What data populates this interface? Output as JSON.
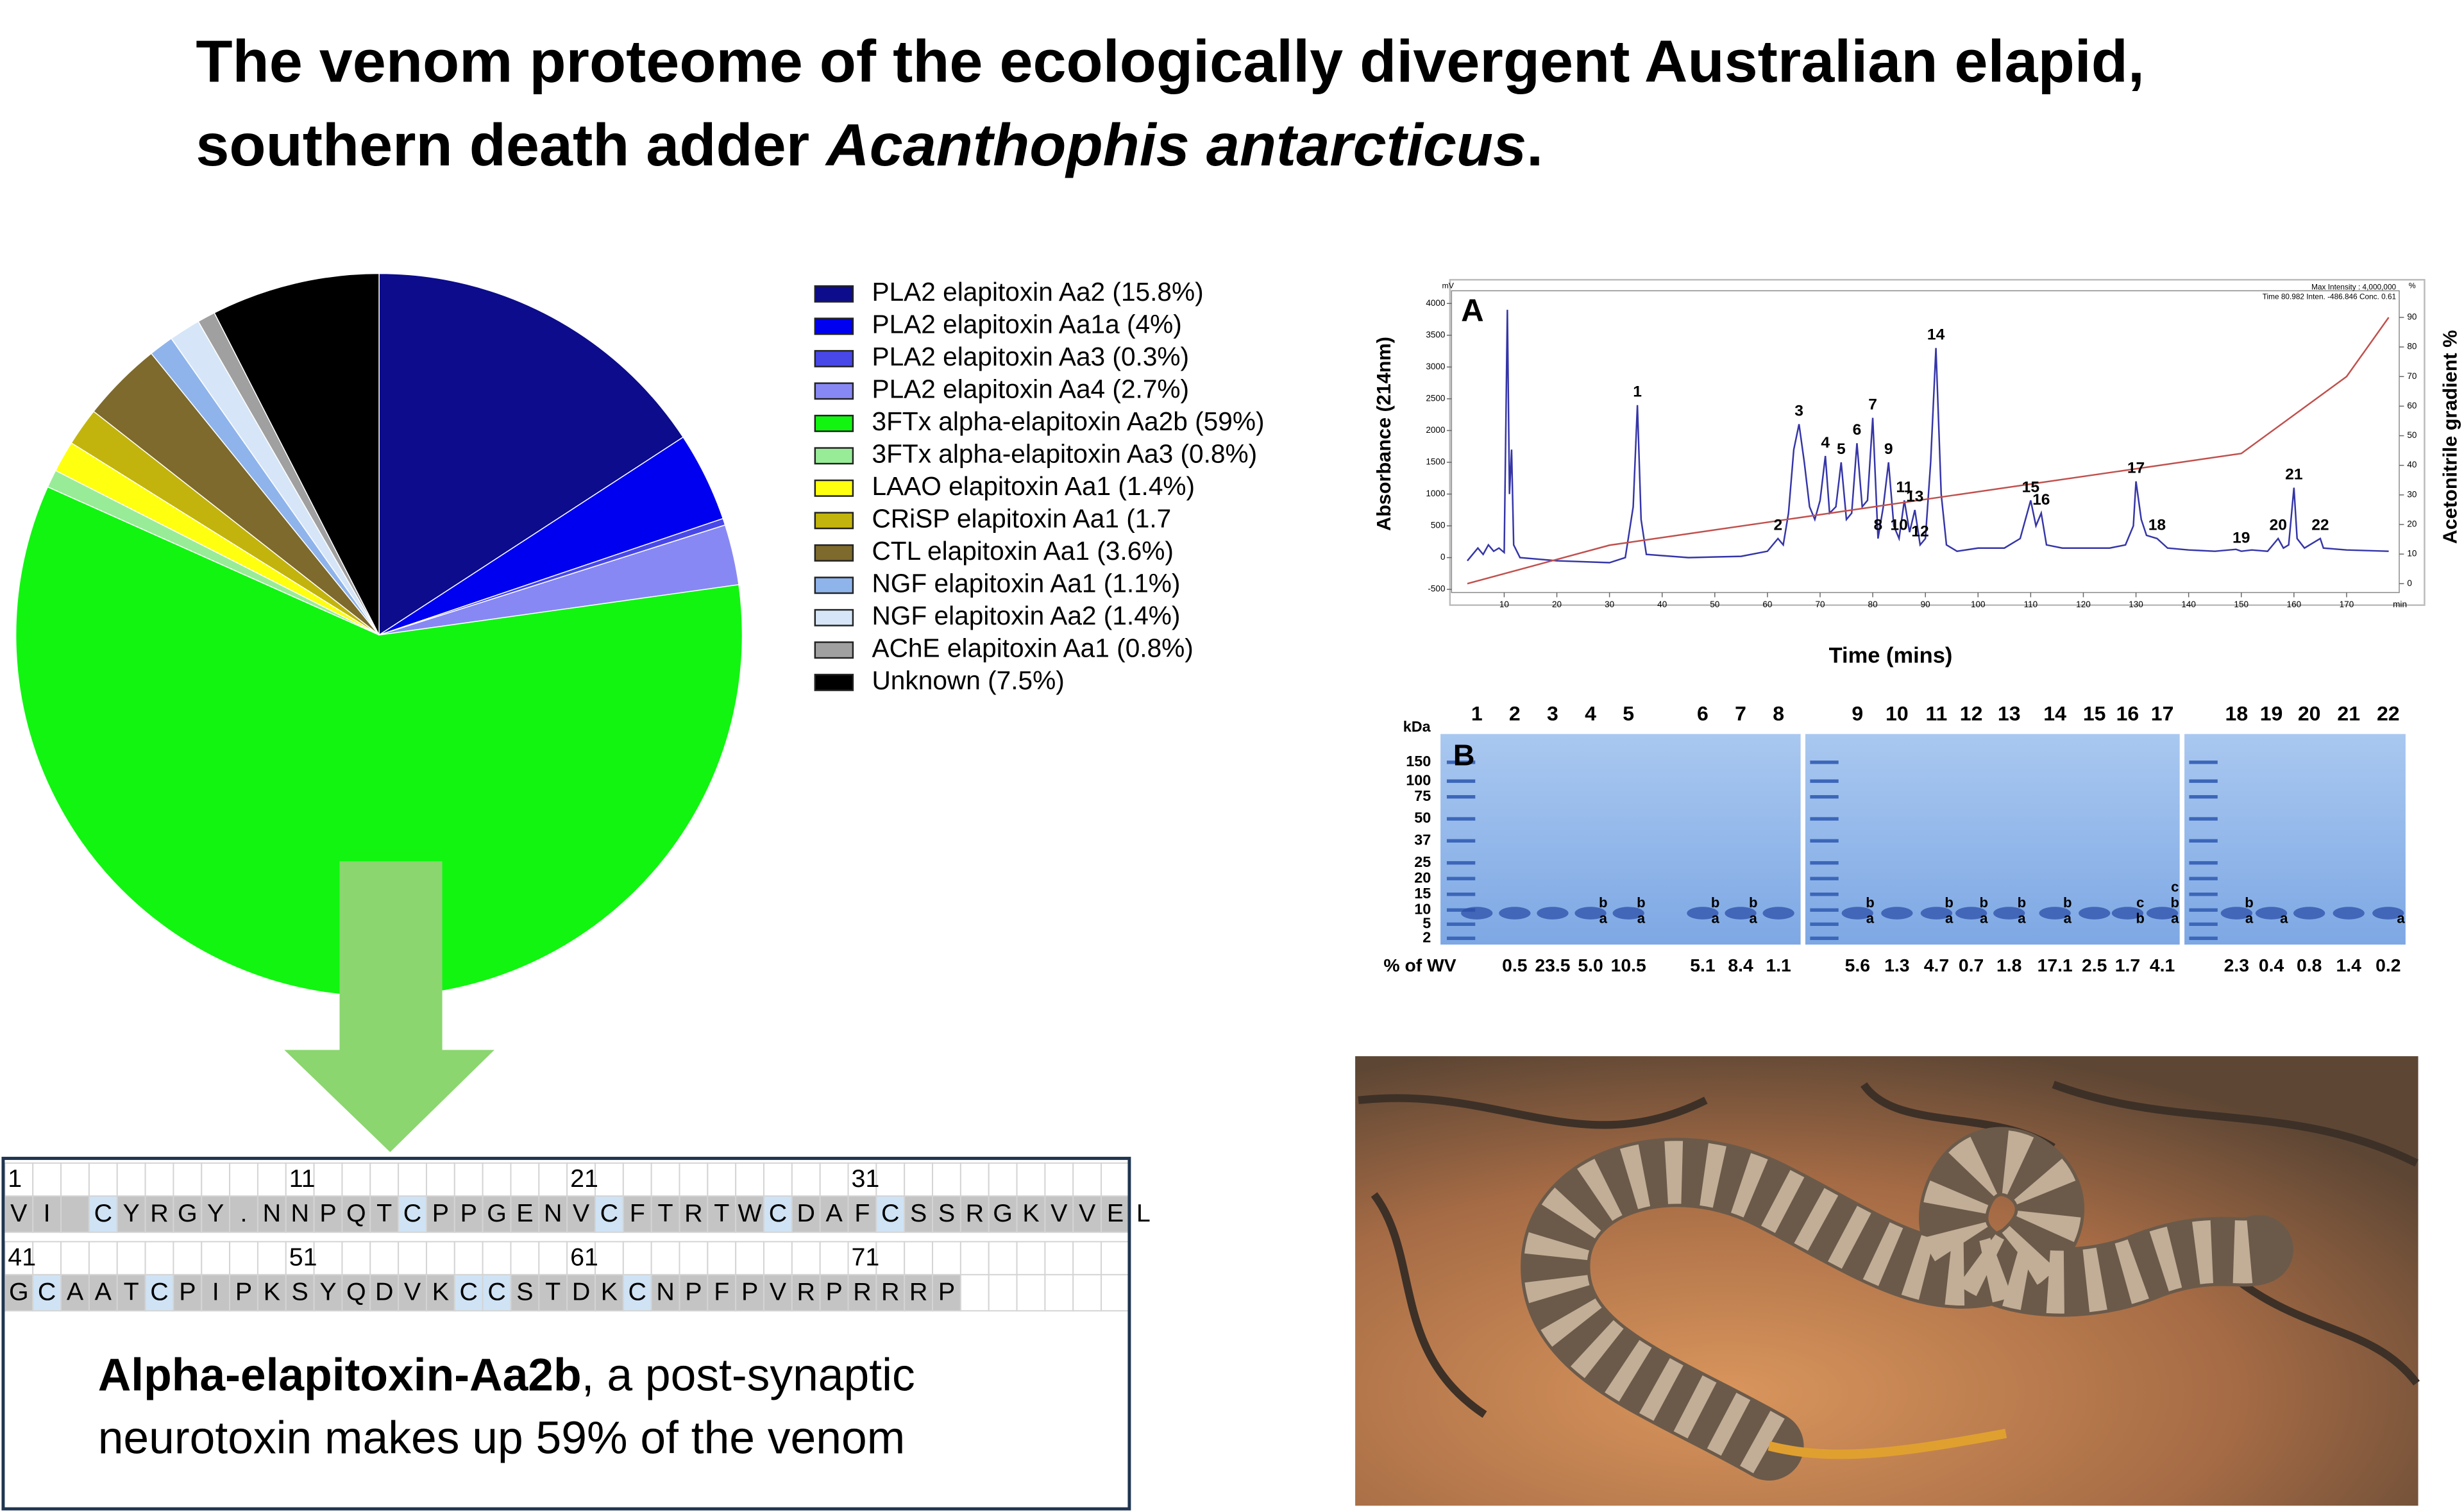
{
  "header": {
    "title_line1": "The venom proteome of the ecologically divergent Australian elapid,",
    "title_line2": "southern death adder ",
    "title_species": "Acanthophis antarcticus",
    "title_end": "."
  },
  "chart_data": {
    "type": "pie",
    "categories": [
      "PLA2 elapitoxin Aa2 (15.8%)",
      "PLA2 elapitoxin Aa1a (4%)",
      "PLA2 elapitoxin Aa3 (0.3%)",
      "PLA2 elapitoxin Aa4 (2.7%)",
      "3FTx alpha-elapitoxin Aa2b (59%)",
      "3FTx alpha-elapitoxin Aa3 (0.8%)",
      "LAAO elapitoxin Aa1 (1.4%)",
      "CRiSP elapitoxin Aa1 (1.7",
      "CTL elapitoxin Aa1 (3.6%)",
      "NGF elapitoxin Aa1 (1.1%)",
      "NGF elapitoxin Aa2 (1.4%)",
      "AChE elapitoxin Aa1 (0.8%)",
      "Unknown (7.5%)"
    ],
    "values": [
      15.8,
      4,
      0.3,
      2.7,
      59,
      0.8,
      1.4,
      1.7,
      3.6,
      1.1,
      1.4,
      0.8,
      7.5
    ],
    "colors": [
      "#0c0c8c",
      "#0000f0",
      "#4848e8",
      "#8888f4",
      "#11f511",
      "#98ec98",
      "#ffff10",
      "#c2b40c",
      "#7d6a2c",
      "#8fb4ec",
      "#d6e6f8",
      "#a0a0a0",
      "#000000"
    ]
  },
  "sequence": {
    "rows": [
      {
        "numbers": [
          1,
          11,
          21,
          31
        ],
        "residues": [
          "V",
          "I",
          "",
          "C",
          "Y",
          "R",
          "G",
          "Y",
          ".",
          "N",
          "N",
          "P",
          "Q",
          "T",
          "C",
          "P",
          "P",
          "G",
          "E",
          "N",
          "V",
          "C",
          "F",
          "T",
          "R",
          "T",
          "W",
          "C",
          "D",
          "A",
          "F",
          "C",
          "S",
          "S",
          "R",
          "G",
          "K",
          "V",
          "V",
          "E",
          "L"
        ]
      },
      {
        "numbers": [
          41,
          51,
          61,
          71
        ],
        "residues": [
          "G",
          "C",
          "A",
          "A",
          "T",
          "C",
          "P",
          "I",
          "P",
          "K",
          "S",
          "Y",
          "Q",
          "D",
          "V",
          "K",
          "C",
          "C",
          "S",
          "T",
          "D",
          "K",
          "C",
          "N",
          "P",
          "F",
          "P",
          "V",
          "R",
          "P",
          "R",
          "R",
          "R",
          "P"
        ]
      }
    ]
  },
  "caption": {
    "bold": "Alpha-elapitoxin-Aa2b",
    "line1_rest": ", a post-synaptic",
    "line2": "neurotoxin makes up 59% of the venom"
  },
  "chromatogram": {
    "panel_label": "A",
    "y_label": "Absorbance (214nm)",
    "y2_label": "Acetonitrile gradient %",
    "x_label": "Time (mins)",
    "y_unit": "mV",
    "y2_unit": "%",
    "x_unit": "min",
    "info": [
      "Max Intensity : 4,000,000",
      "Time 80.982   Inten. -486.846   Conc. 0.61"
    ],
    "xlim": [
      0,
      180
    ],
    "ylim": [
      -550,
      4200
    ],
    "y2lim": [
      -3,
      99
    ],
    "xticks": [
      10,
      20,
      30,
      40,
      50,
      60,
      70,
      80,
      90,
      100,
      110,
      120,
      130,
      140,
      150,
      160,
      170
    ],
    "yticks": [
      -500,
      0,
      500,
      1000,
      1500,
      2000,
      2500,
      3000,
      3500,
      4000
    ],
    "y2ticks": [
      0,
      10,
      20,
      30,
      40,
      50,
      60,
      70,
      80,
      90
    ],
    "series": [
      {
        "color": "#3535a8",
        "x": [
          3,
          5,
          6,
          7,
          8,
          9,
          10,
          10.6,
          11,
          11.4,
          11.8,
          13,
          20,
          30,
          33,
          34.5,
          35.3,
          36,
          37,
          45,
          55,
          60,
          62,
          63,
          64,
          65,
          66,
          67,
          68,
          69,
          70,
          71,
          71.8,
          73,
          74,
          75,
          76,
          77,
          78,
          79,
          80,
          81,
          82,
          83,
          84,
          85,
          86,
          87,
          88,
          89,
          90,
          91,
          92,
          93,
          94,
          96,
          100,
          105,
          108,
          110,
          111,
          112,
          113,
          116,
          125,
          128,
          129.5,
          130,
          131,
          132,
          134,
          136,
          140,
          145,
          149,
          150,
          152,
          155,
          157,
          158,
          159,
          160,
          160.6,
          162,
          165,
          165.6,
          170,
          178
        ],
        "values": [
          -50,
          150,
          50,
          200,
          100,
          150,
          80,
          3900,
          1000,
          1700,
          200,
          0,
          -50,
          -80,
          0,
          800,
          2400,
          600,
          50,
          0,
          20,
          100,
          300,
          200,
          700,
          1700,
          2100,
          1500,
          800,
          600,
          900,
          1600,
          700,
          800,
          1500,
          600,
          700,
          1800,
          800,
          900,
          2200,
          300,
          800,
          1500,
          500,
          300,
          900,
          400,
          750,
          200,
          300,
          1500,
          3300,
          1000,
          200,
          100,
          150,
          150,
          300,
          900,
          500,
          700,
          200,
          150,
          150,
          200,
          500,
          1200,
          600,
          350,
          300,
          150,
          120,
          100,
          130,
          100,
          120,
          100,
          300,
          150,
          200,
          1100,
          300,
          150,
          300,
          150,
          120,
          100
        ]
      },
      {
        "color": "#c0504d",
        "axis": "y2",
        "x": [
          3,
          30,
          150,
          170,
          178
        ],
        "values": [
          0,
          13,
          44,
          70,
          90
        ]
      }
    ],
    "peaks": [
      {
        "label": "1",
        "x": 35.3,
        "y": 2400
      },
      {
        "label": "2",
        "x": 62,
        "y": 300
      },
      {
        "label": "3",
        "x": 66,
        "y": 2100
      },
      {
        "label": "4",
        "x": 71,
        "y": 1600
      },
      {
        "label": "5",
        "x": 74,
        "y": 1500
      },
      {
        "label": "6",
        "x": 77,
        "y": 1800
      },
      {
        "label": "7",
        "x": 80,
        "y": 2200
      },
      {
        "label": "8",
        "x": 81,
        "y": 300
      },
      {
        "label": "9",
        "x": 83,
        "y": 1500
      },
      {
        "label": "10",
        "x": 85,
        "y": 300
      },
      {
        "label": "11",
        "x": 86,
        "y": 900
      },
      {
        "label": "12",
        "x": 89,
        "y": 200
      },
      {
        "label": "13",
        "x": 88,
        "y": 750
      },
      {
        "label": "14",
        "x": 92,
        "y": 3300
      },
      {
        "label": "15",
        "x": 110,
        "y": 900
      },
      {
        "label": "16",
        "x": 112,
        "y": 700
      },
      {
        "label": "17",
        "x": 130,
        "y": 1200
      },
      {
        "label": "18",
        "x": 134,
        "y": 300
      },
      {
        "label": "19",
        "x": 150,
        "y": 100
      },
      {
        "label": "20",
        "x": 157,
        "y": 300
      },
      {
        "label": "21",
        "x": 160,
        "y": 1100
      },
      {
        "label": "22",
        "x": 165,
        "y": 300
      }
    ]
  },
  "gel": {
    "panel_label": "B",
    "unit_label": "kDa",
    "markers": [
      150,
      100,
      75,
      50,
      37,
      25,
      20,
      15,
      10,
      5,
      2
    ],
    "wv_label": "% of WV",
    "lanes": [
      {
        "number": 1
      },
      {
        "number": 2,
        "wv": "0.5"
      },
      {
        "number": 3,
        "wv": "23.5"
      },
      {
        "number": 4,
        "wv": "5.0",
        "bands": [
          "b",
          "a"
        ]
      },
      {
        "number": 5,
        "wv": "10.5",
        "bands": [
          "b",
          "a"
        ]
      },
      {
        "number": 6,
        "wv": "5.1",
        "bands": [
          "b",
          "a"
        ]
      },
      {
        "number": 7,
        "wv": "8.4",
        "bands": [
          "b",
          "a"
        ]
      },
      {
        "number": 8,
        "wv": "1.1"
      },
      {
        "number": 9,
        "wv": "5.6",
        "bands": [
          "b",
          "a"
        ]
      },
      {
        "number": 10,
        "wv": "1.3"
      },
      {
        "number": 11,
        "wv": "4.7",
        "bands": [
          "b",
          "a"
        ]
      },
      {
        "number": 12,
        "wv": "0.7",
        "bands": [
          "b",
          {
            "text": "a",
            "color": "#e02020"
          }
        ]
      },
      {
        "number": 13,
        "wv": "1.8",
        "bands": [
          "b",
          {
            "text": "a",
            "color": "#e02020"
          }
        ]
      },
      {
        "number": 14,
        "wv": "17.1",
        "bands": [
          "b",
          "a"
        ]
      },
      {
        "number": 15,
        "wv": "2.5"
      },
      {
        "number": 16,
        "wv": "1.7",
        "bands": [
          {
            "text": "c",
            "color": "#e02020"
          },
          "b"
        ]
      },
      {
        "number": 17,
        "wv": "4.1",
        "bands": [
          {
            "text": "c",
            "color": "#e02020"
          },
          "b",
          "a"
        ]
      },
      {
        "number": 18,
        "wv": "2.3",
        "bands": [
          "b",
          "a"
        ]
      },
      {
        "number": 19,
        "wv": "0.4",
        "bands": [
          {
            "text": "a",
            "color": "#e02020"
          }
        ]
      },
      {
        "number": 20,
        "wv": "0.8"
      },
      {
        "number": 21,
        "wv": "1.4"
      },
      {
        "number": 22,
        "wv": "0.2",
        "bands": [
          {
            "text": "a",
            "color": "#e02020"
          }
        ]
      }
    ]
  }
}
